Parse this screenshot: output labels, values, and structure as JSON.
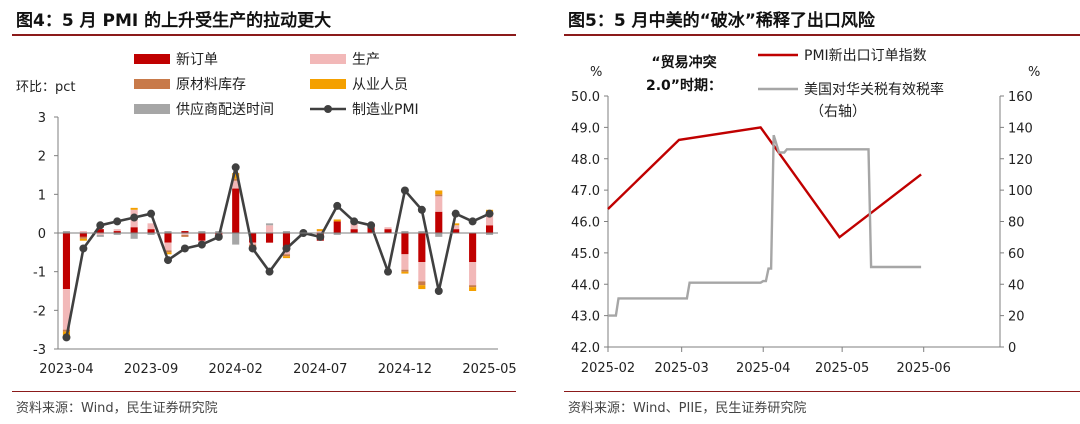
{
  "left": {
    "title": "图4：5 月 PMI 的上升受生产的拉动更大",
    "source": "资料来源：Wind，民生证券研究院",
    "chart_data": {
      "type": "bar",
      "stacked": true,
      "unit_label": "环比：pct",
      "ylim": [
        -3,
        3
      ],
      "yticks": [
        -3,
        -2,
        -1,
        0,
        1,
        2,
        3
      ],
      "xtick_labels": [
        "2023-04",
        "2023-09",
        "2024-02",
        "2024-07",
        "2024-12",
        "2025-05"
      ],
      "xtick_index": [
        0,
        5,
        10,
        15,
        20,
        25
      ],
      "categories": [
        "2023-04",
        "2023-05",
        "2023-06",
        "2023-07",
        "2023-08",
        "2023-09",
        "2023-10",
        "2023-11",
        "2023-12",
        "2024-01",
        "2024-02",
        "2024-03",
        "2024-04",
        "2024-05",
        "2024-06",
        "2024-07",
        "2024-08",
        "2024-09",
        "2024-10",
        "2024-11",
        "2024-12",
        "2025-01",
        "2025-02",
        "2025-03",
        "2025-04",
        "2025-05"
      ],
      "series": [
        {
          "name": "新订单",
          "color": "#c00000",
          "values": [
            -1.45,
            -0.1,
            0.1,
            0.05,
            0.15,
            0.1,
            -0.25,
            0.05,
            -0.2,
            -0.05,
            1.15,
            -0.25,
            -0.25,
            -0.35,
            0.0,
            -0.2,
            0.3,
            0.1,
            0.2,
            0.1,
            -0.55,
            -0.75,
            0.55,
            0.1,
            -0.75,
            0.2
          ]
        },
        {
          "name": "生产",
          "color": "#f2b8b8",
          "values": [
            -1.05,
            0.05,
            -0.05,
            0.05,
            0.45,
            0.15,
            -0.2,
            -0.05,
            -0.1,
            -0.05,
            0.2,
            -0.05,
            0.2,
            -0.2,
            0.05,
            0.05,
            0.0,
            0.15,
            0.05,
            0.05,
            -0.4,
            -0.5,
            0.4,
            0.1,
            -0.6,
            0.35
          ]
        },
        {
          "name": "原材料库存",
          "color": "#c87a4a",
          "values": [
            -0.05,
            -0.05,
            0.0,
            0.0,
            0.0,
            0.0,
            -0.05,
            -0.05,
            0.0,
            0.0,
            0.05,
            -0.05,
            0.0,
            -0.05,
            0.0,
            0.0,
            0.0,
            0.0,
            0.0,
            0.0,
            -0.05,
            -0.1,
            0.05,
            0.0,
            -0.05,
            0.0
          ]
        },
        {
          "name": "从业人员",
          "color": "#f4a000",
          "values": [
            -0.1,
            -0.05,
            0.0,
            0.0,
            0.05,
            0.0,
            -0.05,
            0.0,
            -0.05,
            0.0,
            0.15,
            -0.05,
            0.0,
            -0.05,
            0.0,
            0.05,
            0.05,
            0.05,
            0.0,
            0.0,
            -0.05,
            -0.1,
            0.1,
            0.05,
            -0.1,
            0.05
          ]
        },
        {
          "name": "供应商配送时间",
          "color": "#a6a6a6",
          "values": [
            0.05,
            0.0,
            -0.05,
            -0.05,
            -0.15,
            -0.05,
            0.05,
            0.0,
            0.05,
            0.05,
            -0.3,
            -0.05,
            0.05,
            0.05,
            0.0,
            0.0,
            -0.05,
            0.05,
            0.0,
            0.0,
            0.05,
            0.05,
            -0.1,
            0.0,
            0.0,
            -0.05
          ]
        }
      ],
      "line": {
        "name": "制造业PMI",
        "color": "#404040",
        "values": [
          -2.7,
          -0.4,
          0.2,
          0.3,
          0.4,
          0.5,
          -0.7,
          -0.4,
          -0.3,
          -0.1,
          1.7,
          -0.4,
          -1.0,
          -0.4,
          0.0,
          -0.1,
          0.7,
          0.3,
          0.2,
          -1.0,
          1.1,
          0.6,
          -1.5,
          0.5,
          0.3,
          0.5
        ]
      }
    }
  },
  "right": {
    "title": "图5：5 月中美的“破冰”稀释了出口风险",
    "source": "资料来源：Wind、PIIE，民生证券研究院",
    "annotation_line1": "“贸易冲突",
    "annotation_line2": "2.0”时期：",
    "chart_data": {
      "type": "line",
      "left_unit": "%",
      "right_unit": "%",
      "y_left_lim": [
        42.0,
        50.0
      ],
      "y_left_ticks": [
        "42.0",
        "43.0",
        "44.0",
        "45.0",
        "46.0",
        "47.0",
        "48.0",
        "49.0",
        "50.0"
      ],
      "y_right_lim": [
        0,
        160
      ],
      "y_right_ticks": [
        0,
        20,
        40,
        60,
        80,
        100,
        120,
        140,
        160
      ],
      "xlim": [
        "2025-02-01",
        "2025-06-30"
      ],
      "xtick_labels": [
        "2025-02",
        "2025-03",
        "2025-04",
        "2025-05",
        "2025-06"
      ],
      "xtick_dates": [
        "2025-02-01",
        "2025-03-01",
        "2025-04-01",
        "2025-05-01",
        "2025-06-01"
      ],
      "series": [
        {
          "name": "PMI新出口订单指数",
          "axis": "left",
          "color": "#c00000",
          "x": [
            "2025-02-01",
            "2025-02-28",
            "2025-03-31",
            "2025-04-30",
            "2025-05-31"
          ],
          "y": [
            46.4,
            48.6,
            49.0,
            45.5,
            47.5
          ]
        },
        {
          "name": "美国对华关税有效税率（右轴）",
          "legend_line1": "美国对华关税有效税率",
          "legend_line2": "（右轴）",
          "axis": "right",
          "color": "#a6a6a6",
          "x": [
            "2025-02-01",
            "2025-02-04",
            "2025-02-05",
            "2025-03-03",
            "2025-03-04",
            "2025-03-31",
            "2025-04-01",
            "2025-04-02",
            "2025-04-03",
            "2025-04-04",
            "2025-04-05",
            "2025-04-07",
            "2025-04-09",
            "2025-04-10",
            "2025-05-11",
            "2025-05-12",
            "2025-05-31"
          ],
          "y": [
            20,
            20,
            31,
            31,
            41,
            41,
            42,
            42,
            50,
            50,
            135,
            124,
            124,
            126,
            126,
            51,
            51
          ]
        }
      ]
    }
  }
}
